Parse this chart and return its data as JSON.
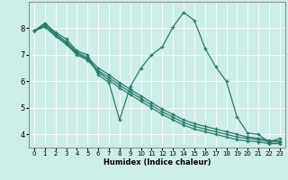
{
  "xlabel": "Humidex (Indice chaleur)",
  "bg_color": "#cceee8",
  "grid_color": "#ffffff",
  "line_color": "#2a7a6a",
  "xlim": [
    -0.5,
    23.5
  ],
  "ylim": [
    3.5,
    9.0
  ],
  "xticks": [
    0,
    1,
    2,
    3,
    4,
    5,
    6,
    7,
    8,
    9,
    10,
    11,
    12,
    13,
    14,
    15,
    16,
    17,
    18,
    19,
    20,
    21,
    22,
    23
  ],
  "yticks": [
    4,
    5,
    6,
    7,
    8
  ],
  "series": [
    {
      "x": [
        0,
        1,
        2,
        3,
        4,
        5,
        6,
        7,
        8,
        9,
        10,
        11,
        12,
        13,
        14,
        15,
        16,
        17,
        18,
        19,
        20,
        21,
        22,
        23
      ],
      "y": [
        7.9,
        8.2,
        7.85,
        7.6,
        7.15,
        7.0,
        6.25,
        5.95,
        4.55,
        5.8,
        6.5,
        7.0,
        7.3,
        8.05,
        8.6,
        8.3,
        7.25,
        6.55,
        6.0,
        4.65,
        4.05,
        4.0,
        3.7,
        3.85
      ]
    },
    {
      "x": [
        0,
        1,
        2,
        3,
        4,
        5,
        6,
        7,
        8,
        9,
        10,
        11,
        12,
        13,
        14,
        15,
        16,
        17,
        18,
        19,
        20,
        21,
        22,
        23
      ],
      "y": [
        7.9,
        8.1,
        7.75,
        7.45,
        7.05,
        6.85,
        6.4,
        6.15,
        5.85,
        5.6,
        5.35,
        5.1,
        4.85,
        4.65,
        4.45,
        4.3,
        4.2,
        4.1,
        4.0,
        3.9,
        3.85,
        3.8,
        3.72,
        3.7
      ]
    },
    {
      "x": [
        0,
        1,
        2,
        3,
        4,
        5,
        6,
        7,
        8,
        9,
        10,
        11,
        12,
        13,
        14,
        15,
        16,
        17,
        18,
        19,
        20,
        21,
        22,
        23
      ],
      "y": [
        7.9,
        8.15,
        7.8,
        7.5,
        7.1,
        6.9,
        6.5,
        6.25,
        5.95,
        5.7,
        5.45,
        5.2,
        4.95,
        4.75,
        4.55,
        4.4,
        4.3,
        4.2,
        4.1,
        4.0,
        3.9,
        3.85,
        3.77,
        3.75
      ]
    },
    {
      "x": [
        0,
        1,
        2,
        3,
        4,
        5,
        6,
        7,
        8,
        9,
        10,
        11,
        12,
        13,
        14,
        15,
        16,
        17,
        18,
        19,
        20,
        21,
        22,
        23
      ],
      "y": [
        7.9,
        8.05,
        7.7,
        7.4,
        7.0,
        6.8,
        6.35,
        6.05,
        5.75,
        5.5,
        5.25,
        5.0,
        4.75,
        4.55,
        4.35,
        4.2,
        4.1,
        4.0,
        3.9,
        3.8,
        3.75,
        3.72,
        3.65,
        3.65
      ]
    }
  ]
}
